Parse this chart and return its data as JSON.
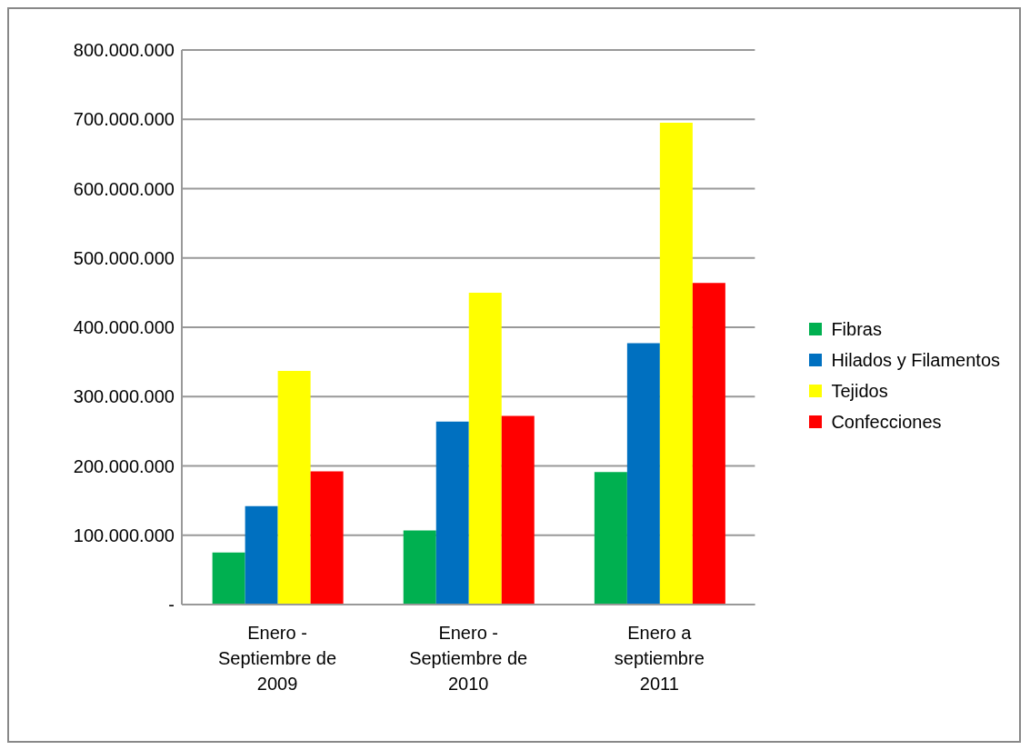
{
  "chart_data": {
    "type": "bar",
    "categories": [
      "Enero - Septiembre de 2009",
      "Enero - Septiembre de 2010",
      "Enero a septiembre 2011"
    ],
    "series": [
      {
        "name": "Fibras",
        "color": "#00b050",
        "values": [
          75000000,
          107000000,
          191000000
        ]
      },
      {
        "name": "Hilados y Filamentos",
        "color": "#0070c0",
        "values": [
          142000000,
          264000000,
          377000000
        ]
      },
      {
        "name": "Tejidos",
        "color": "#ffff00",
        "values": [
          337000000,
          450000000,
          695000000
        ]
      },
      {
        "name": "Confecciones",
        "color": "#ff0000",
        "values": [
          192000000,
          272000000,
          464000000
        ]
      }
    ],
    "ylim": [
      0,
      800000000
    ],
    "yticks": [
      {
        "value": 0,
        "label": "-"
      },
      {
        "value": 100000000,
        "label": "100.000.000"
      },
      {
        "value": 200000000,
        "label": "200.000.000"
      },
      {
        "value": 300000000,
        "label": "300.000.000"
      },
      {
        "value": 400000000,
        "label": "400.000.000"
      },
      {
        "value": 500000000,
        "label": "500.000.000"
      },
      {
        "value": 600000000,
        "label": "600.000.000"
      },
      {
        "value": 700000000,
        "label": "700.000.000"
      },
      {
        "value": 800000000,
        "label": "800.000.000"
      }
    ],
    "grid": "y",
    "legend": "right"
  }
}
